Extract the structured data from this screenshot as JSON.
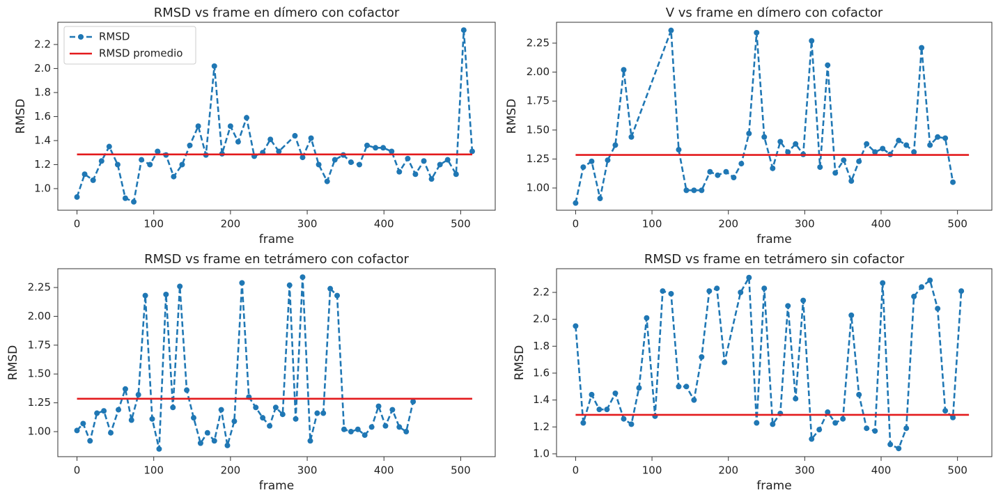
{
  "chart_data": [
    {
      "type": "line",
      "title": "RMSD vs frame en dímero con cofactor",
      "x_label": "frame",
      "y_label": "RMSD",
      "xlim": [
        -25,
        545
      ],
      "ylim": [
        0.82,
        2.385
      ],
      "xticks": [
        0,
        100,
        200,
        300,
        400,
        500
      ],
      "yticks": [
        {
          "value": 1,
          "label": "1.0"
        },
        1.2,
        1.4,
        1.6,
        1.8,
        {
          "value": 2,
          "label": "2.0"
        },
        2.2
      ],
      "legend": "upper left",
      "series": [
        {
          "name": "RMSD",
          "color": "#1f77b4",
          "style": "dashed",
          "marker": "o",
          "x": [
            0,
            10,
            21,
            32,
            42,
            53,
            63,
            74,
            84,
            95,
            105,
            116,
            126,
            137,
            147,
            158,
            168,
            179,
            189,
            200,
            210,
            221,
            231,
            242,
            252,
            263,
            284,
            294,
            305,
            315,
            326,
            336,
            347,
            357,
            368,
            378,
            389,
            399,
            410,
            420,
            431,
            441,
            452,
            462,
            473,
            483,
            494,
            504,
            515
          ],
          "values": [
            0.93,
            1.12,
            1.07,
            1.23,
            1.35,
            1.2,
            0.92,
            0.89,
            1.24,
            1.2,
            1.31,
            1.28,
            1.1,
            1.2,
            1.36,
            1.52,
            1.28,
            2.02,
            1.29,
            1.52,
            1.39,
            1.59,
            1.27,
            1.3,
            1.41,
            1.31,
            1.44,
            1.26,
            1.42,
            1.2,
            1.06,
            1.24,
            1.28,
            1.22,
            1.2,
            1.36,
            1.34,
            1.34,
            1.31,
            1.14,
            1.25,
            1.12,
            1.23,
            1.08,
            1.2,
            1.24,
            1.12,
            2.32,
            1.31
          ]
        },
        {
          "name": "RMSD promedio",
          "color": "#e31a1c",
          "style": "solid",
          "x": [
            0,
            515
          ],
          "values": [
            1.285,
            1.285
          ]
        }
      ]
    },
    {
      "type": "line",
      "title": "V vs frame en dímero con cofactor",
      "x_label": "frame",
      "y_label": "RMSD",
      "xlim": [
        -25,
        545
      ],
      "ylim": [
        0.808,
        2.43
      ],
      "xticks": [
        0,
        100,
        200,
        300,
        400,
        500
      ],
      "yticks": [
        {
          "value": 1,
          "label": "1.00"
        },
        1.25,
        {
          "value": 1.5,
          "label": "1.50"
        },
        1.75,
        {
          "value": 2,
          "label": "2.00"
        },
        2.25
      ],
      "series": [
        {
          "color": "#1f77b4",
          "style": "dashed",
          "marker": "o",
          "x": [
            0,
            10,
            21,
            32,
            42,
            52,
            63,
            73,
            125,
            135,
            145,
            155,
            165,
            176,
            186,
            197,
            207,
            217,
            227,
            237,
            247,
            258,
            268,
            278,
            288,
            298,
            309,
            320,
            330,
            340,
            351,
            361,
            371,
            381,
            392,
            402,
            412,
            423,
            433,
            443,
            453,
            464,
            474,
            484,
            494
          ],
          "values": [
            0.87,
            1.18,
            1.23,
            0.91,
            1.24,
            1.37,
            2.02,
            1.44,
            2.36,
            1.33,
            0.98,
            0.98,
            0.98,
            1.14,
            1.11,
            1.14,
            1.09,
            1.21,
            1.47,
            2.34,
            1.44,
            1.17,
            1.4,
            1.31,
            1.38,
            1.29,
            2.27,
            1.18,
            2.06,
            1.13,
            1.24,
            1.06,
            1.23,
            1.38,
            1.31,
            1.34,
            1.29,
            1.41,
            1.37,
            1.31,
            2.21,
            1.37,
            1.44,
            1.43,
            1.05
          ]
        },
        {
          "color": "#e31a1c",
          "style": "solid",
          "x": [
            0,
            515
          ],
          "values": [
            1.285,
            1.285
          ]
        }
      ]
    },
    {
      "type": "line",
      "title": "RMSD vs frame en tetrámero con cofactor",
      "x_label": "frame",
      "y_label": "RMSD",
      "xlim": [
        -25,
        545
      ],
      "ylim": [
        0.783,
        2.413
      ],
      "xticks": [
        0,
        100,
        200,
        300,
        400,
        500
      ],
      "yticks": [
        {
          "value": 1,
          "label": "1.00"
        },
        1.25,
        {
          "value": 1.5,
          "label": "1.50"
        },
        1.75,
        {
          "value": 2,
          "label": "2.00"
        },
        2.25
      ],
      "series": [
        {
          "color": "#1f77b4",
          "style": "dashed",
          "marker": "o",
          "x": [
            0,
            8,
            17,
            26,
            35,
            44,
            54,
            63,
            71,
            80,
            89,
            98,
            107,
            116,
            125,
            134,
            143,
            152,
            161,
            170,
            179,
            188,
            196,
            205,
            215,
            224,
            233,
            242,
            251,
            259,
            268,
            277,
            285,
            294,
            304,
            313,
            321,
            330,
            339,
            348,
            357,
            366,
            375,
            384,
            393,
            402,
            411,
            420,
            429,
            438
          ],
          "values": [
            1.01,
            1.07,
            0.92,
            1.16,
            1.18,
            0.99,
            1.19,
            1.37,
            1.1,
            1.32,
            2.18,
            1.11,
            0.85,
            2.19,
            1.21,
            2.26,
            1.36,
            1.12,
            0.9,
            0.99,
            0.92,
            1.19,
            0.88,
            1.09,
            2.29,
            1.3,
            1.21,
            1.12,
            1.05,
            1.21,
            1.15,
            2.27,
            1.11,
            2.34,
            0.92,
            1.16,
            1.16,
            2.24,
            2.18,
            1.02,
            1.0,
            1.02,
            0.97,
            1.04,
            1.22,
            1.05,
            1.19,
            1.04,
            1.0,
            1.26
          ]
        },
        {
          "color": "#e31a1c",
          "style": "solid",
          "x": [
            0,
            515
          ],
          "values": [
            1.285,
            1.285
          ]
        }
      ]
    },
    {
      "type": "line",
      "title": "RMSD vs frame en tetrámero sin cofactor",
      "x_label": "frame",
      "y_label": "RMSD",
      "xlim": [
        -25,
        545
      ],
      "ylim": [
        0.979,
        2.376
      ],
      "xticks": [
        0,
        100,
        200,
        300,
        400,
        500
      ],
      "yticks": [
        {
          "value": 1,
          "label": "1.0"
        },
        1.2,
        1.4,
        1.6,
        1.8,
        {
          "value": 2,
          "label": "2.0"
        },
        2.2
      ],
      "series": [
        {
          "color": "#1f77b4",
          "style": "dashed",
          "marker": "o",
          "x": [
            0,
            10,
            21,
            31,
            41,
            52,
            63,
            73,
            83,
            93,
            104,
            114,
            125,
            135,
            145,
            155,
            165,
            175,
            185,
            195,
            216,
            227,
            237,
            247,
            258,
            268,
            278,
            288,
            298,
            309,
            319,
            330,
            340,
            350,
            361,
            371,
            381,
            392,
            402,
            412,
            423,
            433,
            443,
            453,
            464,
            474,
            484,
            494,
            505
          ],
          "values": [
            1.95,
            1.23,
            1.44,
            1.33,
            1.33,
            1.45,
            1.26,
            1.22,
            1.49,
            2.01,
            1.28,
            2.21,
            2.19,
            1.5,
            1.5,
            1.4,
            1.72,
            2.21,
            2.23,
            1.68,
            2.2,
            2.31,
            1.23,
            2.23,
            1.22,
            1.3,
            2.1,
            1.41,
            2.14,
            1.11,
            1.18,
            1.31,
            1.23,
            1.26,
            2.03,
            1.44,
            1.19,
            1.17,
            2.27,
            1.07,
            1.04,
            1.19,
            2.17,
            2.24,
            2.29,
            2.08,
            1.32,
            1.27,
            2.21
          ]
        },
        {
          "color": "#e31a1c",
          "style": "solid",
          "x": [
            0,
            515
          ],
          "values": [
            1.29,
            1.29
          ]
        }
      ]
    }
  ]
}
